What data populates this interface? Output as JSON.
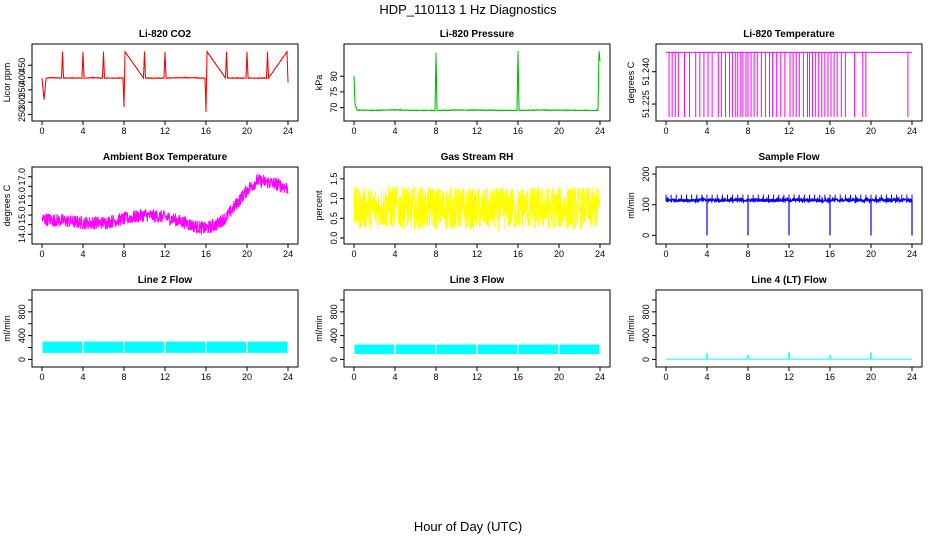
{
  "figure": {
    "title": "HDP_110113  1 Hz Diagnostics",
    "xlabel": "Hour of Day (UTC)"
  },
  "chart_data": [
    {
      "type": "line",
      "title": "Li-820 CO2",
      "ylabel": "Licor ppm",
      "color": "#ff0000",
      "xlim": [
        0,
        24
      ],
      "ylim": [
        240,
        520
      ],
      "xticks": [
        0,
        4,
        8,
        12,
        16,
        20,
        24
      ],
      "yticks": [
        250,
        300,
        350,
        400,
        450
      ],
      "x": [
        0,
        0.2,
        0.4,
        1,
        1.9,
        2,
        2.1,
        3.9,
        4,
        4.1,
        5,
        5.9,
        6,
        6.1,
        7.9,
        8,
        8.1,
        9.9,
        10,
        10.1,
        11.9,
        12,
        12.1,
        14,
        15.9,
        16,
        16.1,
        17.9,
        18,
        18.1,
        19.9,
        20,
        20.1,
        21.9,
        22,
        22.1,
        23.9,
        24
      ],
      "values": [
        398,
        310,
        398,
        400,
        398,
        505,
        398,
        398,
        505,
        398,
        400,
        398,
        505,
        398,
        398,
        280,
        505,
        398,
        505,
        398,
        398,
        505,
        398,
        400,
        398,
        260,
        505,
        398,
        505,
        398,
        398,
        505,
        398,
        398,
        505,
        398,
        505,
        380
      ]
    },
    {
      "type": "line",
      "title": "Li-820 Pressure",
      "ylabel": "kPa",
      "color": "#00bb00",
      "xlim": [
        0,
        24
      ],
      "ylim": [
        67,
        89
      ],
      "xticks": [
        0,
        4,
        8,
        12,
        16,
        20,
        24
      ],
      "yticks": [
        70,
        75,
        80
      ],
      "x": [
        0,
        0.1,
        0.3,
        2,
        4,
        6,
        7.9,
        8,
        8.1,
        10,
        12,
        14,
        15.9,
        16,
        16.1,
        18,
        20,
        22,
        23.8,
        23.9,
        24
      ],
      "values": [
        80,
        71,
        69.2,
        69.1,
        69.3,
        69.1,
        69.1,
        87.5,
        69.1,
        69.2,
        69.2,
        69.1,
        69.1,
        88,
        69.1,
        69.2,
        69.2,
        69.1,
        69.1,
        88,
        85
      ]
    },
    {
      "type": "line",
      "title": "Li-820 Temperature",
      "ylabel": "degrees C",
      "color": "#ff00ff",
      "xlim": [
        0,
        24
      ],
      "ylim": [
        51.219,
        51.251
      ],
      "xticks": [
        0,
        4,
        8,
        12,
        16,
        20,
        24
      ],
      "yticks": [
        51.225,
        51.24
      ],
      "ytick_labels": [
        "51.225",
        "51.240"
      ],
      "baseline": 51.249,
      "dips_x": [
        0.3,
        0.6,
        0.9,
        1.2,
        1.8,
        2.3,
        2.9,
        3.3,
        3.7,
        4.1,
        4.5,
        5.1,
        5.4,
        5.8,
        6.2,
        6.5,
        6.8,
        7.0,
        7.3,
        7.5,
        7.8,
        8.0,
        8.3,
        8.6,
        8.9,
        9.3,
        9.7,
        10.1,
        10.4,
        10.8,
        11.2,
        11.6,
        12.1,
        12.4,
        12.7,
        13.0,
        13.4,
        13.8,
        14.0,
        14.3,
        14.6,
        14.9,
        15.2,
        15.5,
        15.8,
        16.1,
        16.4,
        16.7,
        17.1,
        17.5,
        18.4,
        19.2,
        19.5,
        23.6
      ],
      "dip_value": 51.219
    },
    {
      "type": "line",
      "title": "Ambient Box Temperature",
      "ylabel": "degrees C",
      "color": "#ff00ff",
      "xlim": [
        0,
        24
      ],
      "ylim": [
        13.7,
        17.3
      ],
      "xticks": [
        0,
        4,
        8,
        12,
        16,
        20,
        24
      ],
      "yticks": [
        14.0,
        14.5,
        15.0,
        15.5,
        16.0,
        16.5,
        17.0
      ],
      "ytick_labels": [
        "14.0",
        "",
        "15.0",
        "",
        "16.0",
        "",
        "17.0"
      ],
      "x": [
        0,
        2,
        4,
        6,
        8,
        10,
        12,
        14,
        15,
        16,
        17,
        18,
        19,
        20,
        21,
        22,
        23,
        24
      ],
      "values": [
        14.8,
        14.7,
        14.6,
        14.6,
        14.8,
        15.0,
        14.9,
        14.6,
        14.4,
        14.3,
        14.5,
        14.9,
        15.6,
        16.3,
        16.8,
        16.7,
        16.6,
        16.4
      ],
      "band": 0.35
    },
    {
      "type": "line",
      "title": "Gas Stream RH",
      "ylabel": "percent",
      "color": "#ffff00",
      "xlim": [
        0,
        24
      ],
      "ylim": [
        -0.05,
        1.7
      ],
      "xticks": [
        0,
        4,
        8,
        12,
        16,
        20,
        24
      ],
      "yticks": [
        0.0,
        0.5,
        1.0,
        1.5
      ],
      "ytick_labels": [
        "0.0",
        "0.5",
        "1.0",
        "1.5"
      ],
      "x": [
        0,
        4,
        8,
        12,
        16,
        20,
        24
      ],
      "values": [
        0.75,
        0.78,
        0.75,
        0.73,
        0.75,
        0.77,
        0.75
      ],
      "band": 0.55
    },
    {
      "type": "line",
      "title": "Sample Flow",
      "ylabel": "ml/min",
      "color": "#0000ff",
      "xlim": [
        0,
        24
      ],
      "ylim": [
        -15,
        210
      ],
      "xticks": [
        0,
        4,
        8,
        12,
        16,
        20,
        24
      ],
      "yticks": [
        0,
        100,
        200
      ],
      "baseline": 115,
      "band": 10,
      "dips_x": [
        4,
        8,
        12,
        16,
        20,
        24
      ],
      "dip_value": 0
    },
    {
      "type": "line",
      "title": "Line 2 Flow",
      "ylabel": "ml/min",
      "color": "#00ffff",
      "xlim": [
        0,
        24
      ],
      "ylim": [
        -60,
        1100
      ],
      "xticks": [
        0,
        4,
        8,
        12,
        16,
        20,
        24
      ],
      "yticks": [
        0,
        200,
        400,
        600,
        800,
        1000
      ],
      "ytick_labels": [
        "0",
        "",
        "400",
        "",
        "800",
        ""
      ],
      "band_range": [
        110,
        300
      ],
      "gaps_x": [
        4,
        8,
        12,
        16,
        20
      ]
    },
    {
      "type": "line",
      "title": "Line 3 Flow",
      "ylabel": "ml/min",
      "color": "#00ffff",
      "xlim": [
        0,
        24
      ],
      "ylim": [
        -60,
        1100
      ],
      "xticks": [
        0,
        4,
        8,
        12,
        16,
        20,
        24
      ],
      "yticks": [
        0,
        200,
        400,
        600,
        800,
        1000
      ],
      "ytick_labels": [
        "0",
        "",
        "400",
        "",
        "800",
        ""
      ],
      "band_range": [
        90,
        250
      ],
      "gaps_x": [
        4,
        8,
        12,
        16,
        20
      ]
    },
    {
      "type": "line",
      "title": "Line 4 (LT) Flow",
      "ylabel": "ml/min",
      "color": "#00ffff",
      "xlim": [
        0,
        24
      ],
      "ylim": [
        -60,
        1100
      ],
      "xticks": [
        0,
        4,
        8,
        12,
        16,
        20,
        24
      ],
      "yticks": [
        0,
        200,
        400,
        600,
        800,
        1000
      ],
      "ytick_labels": [
        "0",
        "",
        "400",
        "",
        "800",
        ""
      ],
      "baseline": 5,
      "spikes_x": [
        4,
        8,
        12,
        16,
        20
      ],
      "spikes_y": [
        110,
        80,
        120,
        70,
        120
      ]
    }
  ]
}
